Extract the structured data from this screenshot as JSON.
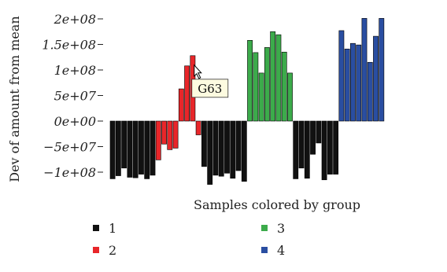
{
  "chart_data": {
    "type": "bar",
    "ylabel": "Dev of amount from mean",
    "xlabel": "Samples colored by group",
    "ylim": [
      -115000000,
      205000000
    ],
    "yticks": [
      {
        "value": 200000000,
        "label": "2e+08"
      },
      {
        "value": 150000000,
        "label": "1.5e+08"
      },
      {
        "value": 100000000,
        "label": "1e+08"
      },
      {
        "value": 50000000,
        "label": "5e+07"
      },
      {
        "value": 0,
        "label": "0e+00"
      },
      {
        "value": -50000000,
        "label": "−5e+07"
      },
      {
        "value": -100000000,
        "label": "−1e+08"
      }
    ],
    "groups": [
      {
        "name": "1",
        "color": "#111111",
        "values": [
          -113000000,
          -107000000,
          -92000000,
          -110000000,
          -111000000,
          -104000000,
          -113000000,
          -106000000
        ]
      },
      {
        "name": "2",
        "color": "#e8262a",
        "values": [
          -76000000,
          -45000000,
          -56000000,
          -53000000,
          63000000,
          108000000,
          128000000,
          -27000000
        ]
      },
      {
        "name": "1",
        "color": "#111111",
        "values": [
          -89000000,
          -124000000,
          -106000000,
          -108000000,
          -102000000,
          -112000000,
          -97000000,
          -118000000
        ]
      },
      {
        "name": "3",
        "color": "#3cab4b",
        "values": [
          158000000,
          134000000,
          94000000,
          144000000,
          175000000,
          169000000,
          135000000,
          94000000
        ]
      },
      {
        "name": "1",
        "color": "#111111",
        "values": [
          -113000000,
          -92000000,
          -112000000,
          -65000000,
          -43000000,
          -115000000,
          -104000000,
          -104000000
        ]
      },
      {
        "name": "4",
        "color": "#2a4ea1",
        "values": [
          177000000,
          141000000,
          152000000,
          149000000,
          201000000,
          115000000,
          166000000,
          201000000
        ]
      }
    ],
    "legend": [
      {
        "label": "1",
        "color": "#111111"
      },
      {
        "label": "2",
        "color": "#e8262a"
      },
      {
        "label": "3",
        "color": "#3cab4b"
      },
      {
        "label": "4",
        "color": "#2a4ea1"
      }
    ],
    "tooltip": {
      "text": "G63",
      "group_index": 1,
      "bar_index": 6
    }
  }
}
